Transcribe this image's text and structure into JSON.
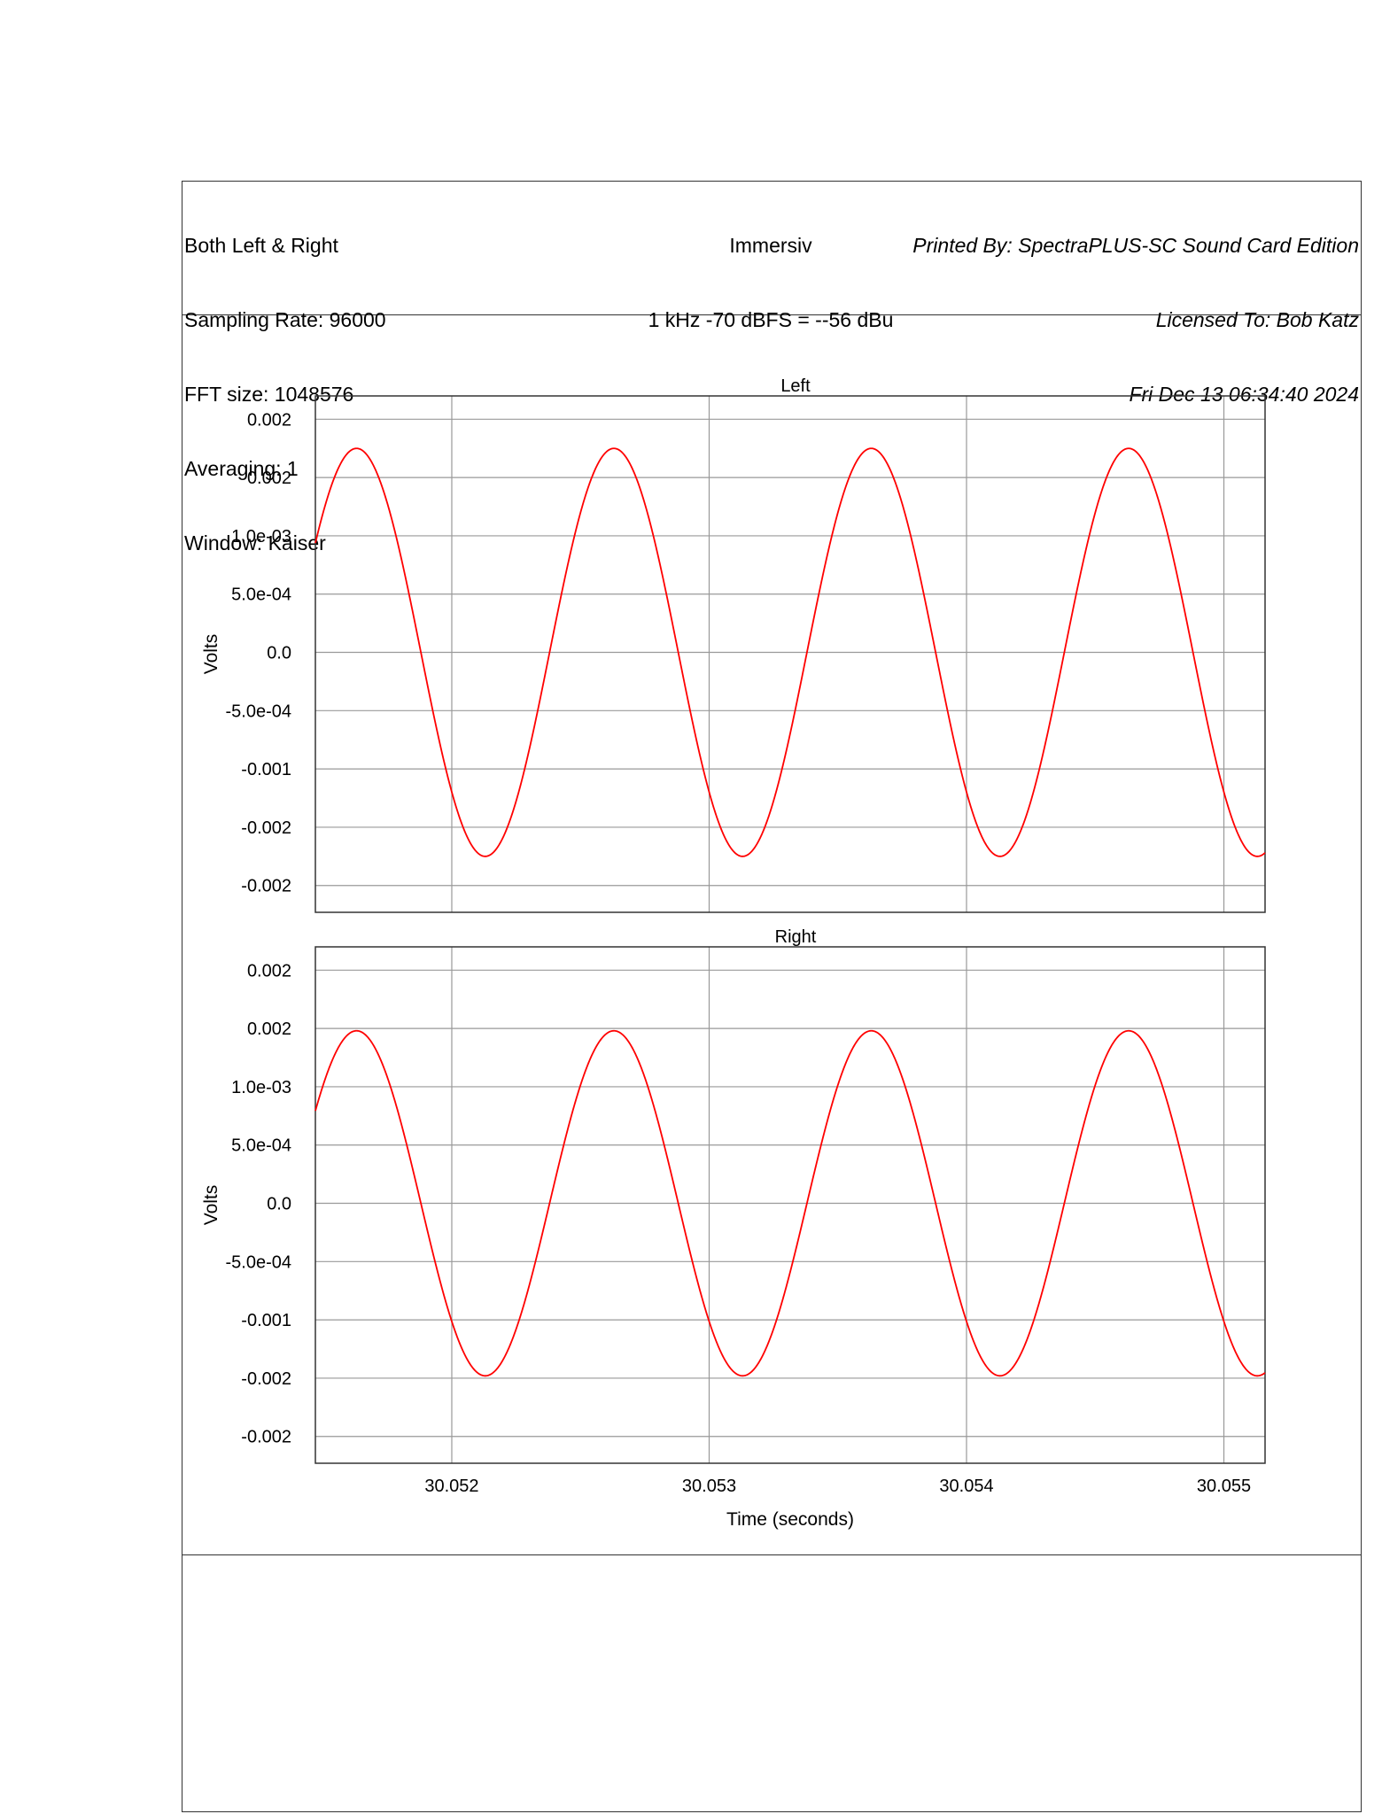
{
  "header": {
    "left": [
      "Both Left & Right",
      "Sampling Rate: 96000",
      "FFT size: 1048576",
      "Averaging: 1",
      "Window: Kaiser"
    ],
    "center": [
      "Immersiv",
      "1 kHz -70 dBFS = --56 dBu"
    ],
    "right": [
      "Printed By: SpectraPLUS-SC Sound Card Edition",
      "Licensed To: Bob Katz",
      "Fri Dec 13 06:34:40 2024"
    ]
  },
  "colors": {
    "trace": "#ff0000",
    "grid": "#999999",
    "frame": "#333333"
  },
  "chart_data": [
    {
      "type": "line",
      "title": "Left",
      "ylabel": "Volts",
      "xlabel": "",
      "grid": true,
      "xlim": [
        30.05147,
        30.05516
      ],
      "ylim": [
        -0.00223,
        0.0022
      ],
      "y_ticks": [
        0.002,
        0.0015,
        0.001,
        0.0005,
        0.0,
        -0.0005,
        -0.001,
        -0.0015,
        -0.002
      ],
      "y_tick_labels": [
        "0.002",
        "0.002",
        "1.0e-03",
        "5.0e-04",
        "0.0",
        "-5.0e-04",
        "-0.001",
        "-0.002",
        "-0.002"
      ],
      "x_ticks": [
        30.052,
        30.053,
        30.054,
        30.055
      ],
      "series": [
        {
          "frequency_hz": 1000,
          "amplitude": 0.00175,
          "phase_reference_peak_time": 30.05163,
          "sample_x": [
            30.05147,
            30.05163,
            30.05188,
            30.05213,
            30.05238,
            30.05263,
            30.05288,
            30.05313,
            30.05338,
            30.05363,
            30.05388,
            30.05413,
            30.05438,
            30.05463,
            30.05488,
            30.05513
          ],
          "sample_y": [
            0.0008,
            0.00175,
            0.0,
            -0.00175,
            0.0,
            0.00175,
            0.0,
            -0.00175,
            0.0,
            0.00175,
            0.0,
            -0.00175,
            0.0,
            0.00175,
            0.0,
            -0.00175
          ]
        }
      ]
    },
    {
      "type": "line",
      "title": "Right",
      "ylabel": "Volts",
      "xlabel": "Time (seconds)",
      "grid": true,
      "xlim": [
        30.05147,
        30.05516
      ],
      "ylim": [
        -0.00223,
        0.0022
      ],
      "y_ticks": [
        0.002,
        0.0015,
        0.001,
        0.0005,
        0.0,
        -0.0005,
        -0.001,
        -0.0015,
        -0.002
      ],
      "y_tick_labels": [
        "0.002",
        "0.002",
        "1.0e-03",
        "5.0e-04",
        "0.0",
        "-5.0e-04",
        "-0.001",
        "-0.002",
        "-0.002"
      ],
      "x_ticks": [
        30.052,
        30.053,
        30.054,
        30.055
      ],
      "x_tick_labels": [
        "30.052",
        "30.053",
        "30.054",
        "30.055"
      ],
      "series": [
        {
          "frequency_hz": 1000,
          "amplitude": 0.00148,
          "phase_reference_peak_time": 30.05163,
          "sample_x": [
            30.05147,
            30.05163,
            30.05188,
            30.05213,
            30.05238,
            30.05263,
            30.05288,
            30.05313,
            30.05338,
            30.05363,
            30.05388,
            30.05413,
            30.05438,
            30.05463,
            30.05488,
            30.05513
          ],
          "sample_y": [
            0.0007,
            0.00148,
            0.0,
            -0.00148,
            0.0,
            0.00148,
            0.0,
            -0.00148,
            0.0,
            0.00148,
            0.0,
            -0.00148,
            0.0,
            0.00148,
            0.0,
            -0.00148
          ]
        }
      ]
    }
  ]
}
